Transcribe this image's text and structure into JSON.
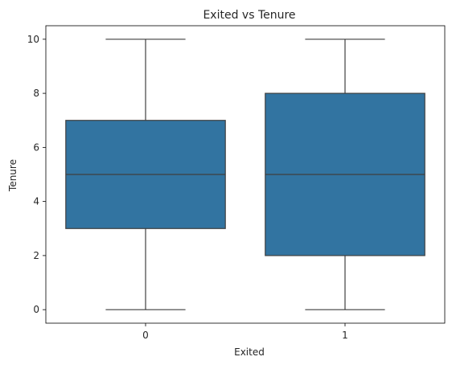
{
  "chart_data": {
    "type": "box",
    "title": "Exited vs Tenure",
    "xlabel": "Exited",
    "ylabel": "Tenure",
    "categories": [
      "0",
      "1"
    ],
    "ylim": [
      -0.5,
      10.5
    ],
    "yticks": [
      0,
      2,
      4,
      6,
      8,
      10
    ],
    "grid": false,
    "legend": "none",
    "box_color": "#3274a1",
    "line_color": "#3f3f3f",
    "boxes": [
      {
        "category": "0",
        "min": 0,
        "q1": 3,
        "median": 5,
        "q3": 7,
        "max": 10
      },
      {
        "category": "1",
        "min": 0,
        "q1": 2,
        "median": 5,
        "q3": 8,
        "max": 10
      }
    ]
  }
}
